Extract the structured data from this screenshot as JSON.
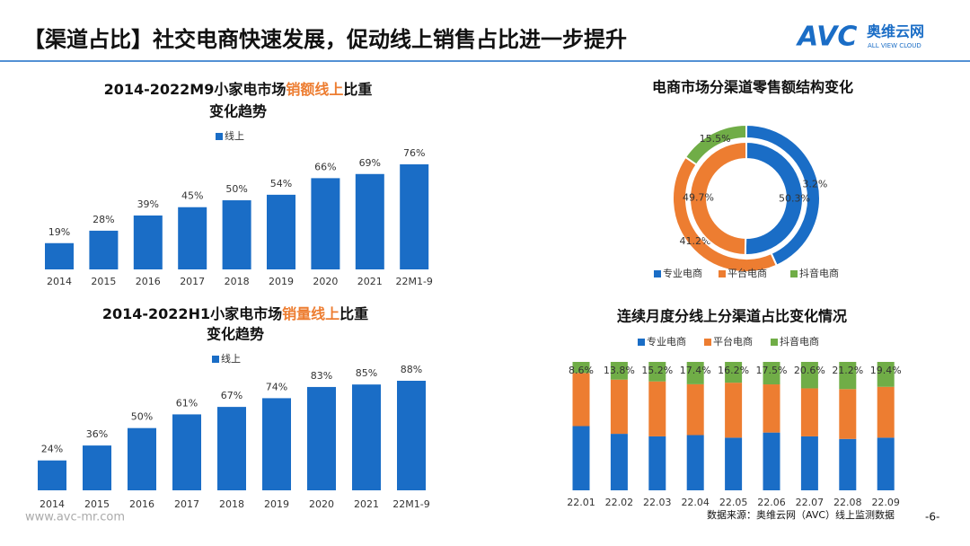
{
  "header": {
    "title": "【渠道占比】社交电商快速发展，促动线上销售占比进一步提升",
    "logo": {
      "mark": "AVC",
      "name": "奥维云网",
      "tagline": "ALL VIEW CLOUD"
    }
  },
  "chart_data": [
    {
      "type": "bar",
      "title": [
        "2014-2022M9小家电市场",
        "销额线上",
        "比重",
        "变化趋势"
      ],
      "categories": [
        "2014",
        "2015",
        "2016",
        "2017",
        "2018",
        "2019",
        "2020",
        "2021",
        "22M1-9"
      ],
      "series": [
        {
          "name": "线上",
          "color": "#1a6dc6",
          "values": [
            19,
            28,
            39,
            45,
            50,
            54,
            66,
            69,
            76
          ],
          "value_labels": [
            "19%",
            "28%",
            "39%",
            "45%",
            "50%",
            "54%",
            "66%",
            "69%",
            "76%"
          ]
        }
      ]
    },
    {
      "type": "bar",
      "title": [
        "2014-2022H1小家电市场",
        "销量线上",
        "比重",
        "变化趋势"
      ],
      "categories": [
        "2014",
        "2015",
        "2016",
        "2017",
        "2018",
        "2019",
        "2020",
        "2021",
        "22M1-9"
      ],
      "series": [
        {
          "name": "线上",
          "color": "#1a6dc6",
          "values": [
            24,
            36,
            50,
            61,
            67,
            74,
            83,
            85,
            88
          ],
          "value_labels": [
            "24%",
            "36%",
            "50%",
            "61%",
            "67%",
            "74%",
            "83%",
            "85%",
            "88%"
          ]
        }
      ]
    },
    {
      "type": "doughnut",
      "title": "电商市场分渠道零售额结构变化",
      "categories": [
        "专业电商",
        "平台电商",
        "抖音电商"
      ],
      "colors": [
        "#1a6dc6",
        "#ed7d31",
        "#70ad47"
      ],
      "rings": [
        {
          "values": [
            43.2,
            41.2,
            15.5
          ],
          "value_labels": [
            "43.2%",
            "41.2%",
            "15.5%"
          ]
        },
        {
          "values": [
            50.3,
            49.7,
            null
          ],
          "value_labels": [
            "50.3%",
            "49.7%",
            null
          ]
        }
      ]
    },
    {
      "type": "stacked_bar",
      "title": "连续月度分线上分渠道占比变化情况",
      "categories": [
        "22.01",
        "22.02",
        "22.03",
        "22.04",
        "22.05",
        "22.06",
        "22.07",
        "22.08",
        "22.09"
      ],
      "series": [
        {
          "name": "专业电商",
          "color": "#1a6dc6",
          "values": [
            50,
            44,
            42,
            43,
            41,
            45,
            42,
            40,
            41
          ]
        },
        {
          "name": "平台电商",
          "color": "#ed7d31",
          "values": [
            41.4,
            42.2,
            42.8,
            39.6,
            42.8,
            37.5,
            37.4,
            38.8,
            39.6
          ]
        },
        {
          "name": "抖音电商",
          "color": "#70ad47",
          "values": [
            8.6,
            13.8,
            15.2,
            17.4,
            16.2,
            17.5,
            20.6,
            21.2,
            19.4
          ],
          "value_labels": [
            "8.6%",
            "13.8%",
            "15.2%",
            "17.4%",
            "16.2%",
            "17.5%",
            "20.6%",
            "21.2%",
            "19.4%"
          ]
        }
      ]
    }
  ],
  "footer": {
    "website": "www.avc-mr.com",
    "source": "数据来源：奥维云网（AVC）线上监测数据",
    "page": "-6-"
  }
}
